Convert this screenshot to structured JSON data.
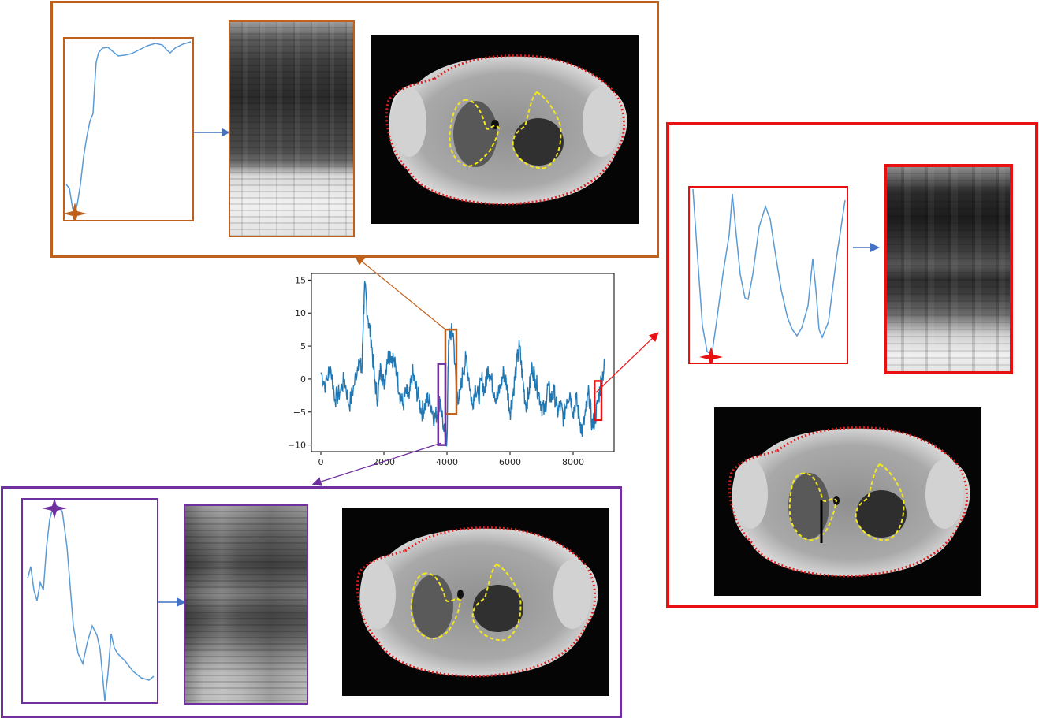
{
  "colors": {
    "orange": "#c0601d",
    "purple": "#7030a0",
    "red": "#e81010",
    "signal": "#1f77b4",
    "arrow_blue": "#4472c4",
    "lung_contour": "#f5e71a",
    "body_contour": "#e01c1c"
  },
  "chart_data": {
    "type": "line",
    "title": "",
    "xlabel": "",
    "ylabel": "",
    "xlim": [
      -300,
      9300
    ],
    "ylim": [
      -11,
      16
    ],
    "x_ticks": [
      0,
      2000,
      4000,
      6000,
      8000
    ],
    "y_ticks": [
      -10,
      -5,
      0,
      5,
      10,
      15
    ],
    "x_tick_labels": [
      "0",
      "2000",
      "4000",
      "6000",
      "8000"
    ],
    "y_tick_labels": [
      "−10",
      "−5",
      "0",
      "5",
      "10",
      "15"
    ],
    "series": [
      {
        "x": [
          0,
          150,
          300,
          450,
          600,
          750,
          900,
          1050,
          1200,
          1300,
          1350,
          1400,
          1500,
          1600,
          1700,
          1800,
          1900,
          2000,
          2100,
          2200,
          2300,
          2400,
          2500,
          2600,
          2700,
          2800,
          2900,
          3000,
          3100,
          3200,
          3300,
          3400,
          3500,
          3600,
          3700,
          3800,
          3900,
          4000,
          4050,
          4100,
          4200,
          4300,
          4400,
          4500,
          4600,
          4700,
          4800,
          4900,
          5000,
          5100,
          5200,
          5300,
          5400,
          5500,
          5600,
          5700,
          5800,
          5900,
          6000,
          6100,
          6200,
          6300,
          6400,
          6500,
          6600,
          6700,
          6800,
          6900,
          7000,
          7100,
          7200,
          7300,
          7400,
          7500,
          7600,
          7700,
          7800,
          7900,
          8000,
          8100,
          8200,
          8300,
          8400,
          8500,
          8600,
          8700,
          8800,
          8900,
          9000
        ],
        "y": [
          1,
          -1,
          2,
          -3,
          -2,
          0,
          -4,
          -1,
          3,
          1,
          10,
          14,
          9,
          6,
          0,
          -3,
          2,
          -1,
          3,
          4,
          3,
          1,
          -2,
          -4,
          -2,
          -3,
          1,
          -1,
          -3,
          -5,
          -4,
          -3,
          -4,
          -6,
          -5,
          -3,
          -8,
          -9,
          6,
          7,
          7,
          -2,
          -3,
          1,
          3,
          0,
          -4,
          -1,
          -3,
          0,
          -2,
          2,
          0,
          -2,
          -3,
          -1,
          1,
          -1,
          -5,
          -2,
          2,
          5,
          0,
          -4,
          -2,
          2,
          0,
          -2,
          -4,
          -5,
          -1,
          -3,
          -2,
          -5,
          -4,
          -6,
          -3,
          -2,
          -5,
          -3,
          -6,
          -8,
          -5,
          -2,
          -7,
          -6,
          -3,
          0,
          2
        ]
      }
    ]
  }
}
